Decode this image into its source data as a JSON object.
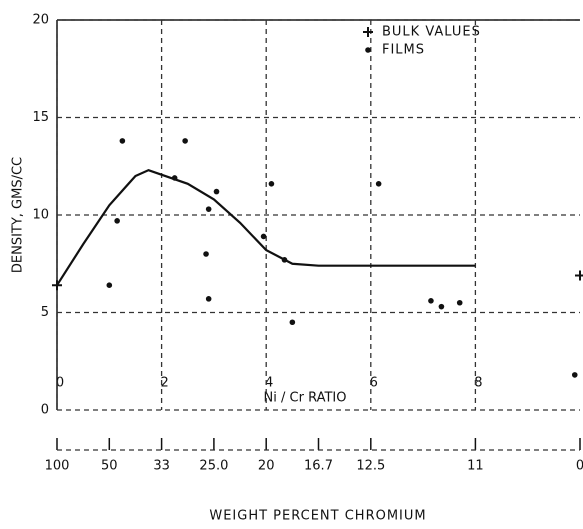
{
  "chart_data": {
    "type": "scatter",
    "y_label": "DENSITY, GMS/CC",
    "x_label": "WEIGHT PERCENT CHROMIUM",
    "x_inner_label": "Ni / Cr RATIO",
    "xlim": [
      0,
      10
    ],
    "ylim": [
      0,
      20
    ],
    "xticks": [
      0,
      2,
      4,
      6,
      8
    ],
    "yticks": [
      0,
      5,
      10,
      15,
      20
    ],
    "x2ticks": [
      {
        "value": 0,
        "label": "100"
      },
      {
        "value": 1,
        "label": "50"
      },
      {
        "value": 2,
        "label": "33"
      },
      {
        "value": 3,
        "label": "25.0"
      },
      {
        "value": 4,
        "label": "20"
      },
      {
        "value": 5,
        "label": "16.7"
      },
      {
        "value": 6,
        "label": "12.5"
      },
      {
        "value": 8,
        "label": "11"
      },
      {
        "value": 10,
        "label": "0"
      }
    ],
    "grid": true,
    "legend": "top-right",
    "series": [
      {
        "name": "BULK VALUES",
        "kind": "points",
        "marker": "plus",
        "color": "#111",
        "x": [
          0,
          10
        ],
        "values": [
          6.4,
          6.9
        ]
      },
      {
        "name": "FILMS",
        "kind": "points",
        "marker": "dot",
        "color": "#111",
        "x": [
          1.0,
          1.25,
          1.15,
          2.25,
          2.45,
          2.85,
          2.9,
          3.05,
          2.9,
          3.95,
          4.1,
          4.35,
          4.5,
          6.15,
          7.15,
          7.35,
          7.7,
          9.9
        ],
        "values": [
          6.4,
          13.8,
          9.7,
          11.9,
          13.8,
          8.0,
          10.3,
          11.2,
          5.7,
          8.9,
          11.6,
          7.7,
          4.5,
          11.6,
          5.6,
          5.3,
          5.5,
          1.8
        ]
      },
      {
        "kind": "line",
        "color": "#111",
        "x": [
          0,
          0.5,
          1,
          1.5,
          1.75,
          2.5,
          3,
          3.5,
          4,
          4.5,
          5,
          8
        ],
        "values": [
          6.4,
          8.5,
          10.5,
          12,
          12.3,
          11.6,
          10.8,
          9.6,
          8.2,
          7.5,
          7.4,
          7.4
        ]
      }
    ]
  }
}
